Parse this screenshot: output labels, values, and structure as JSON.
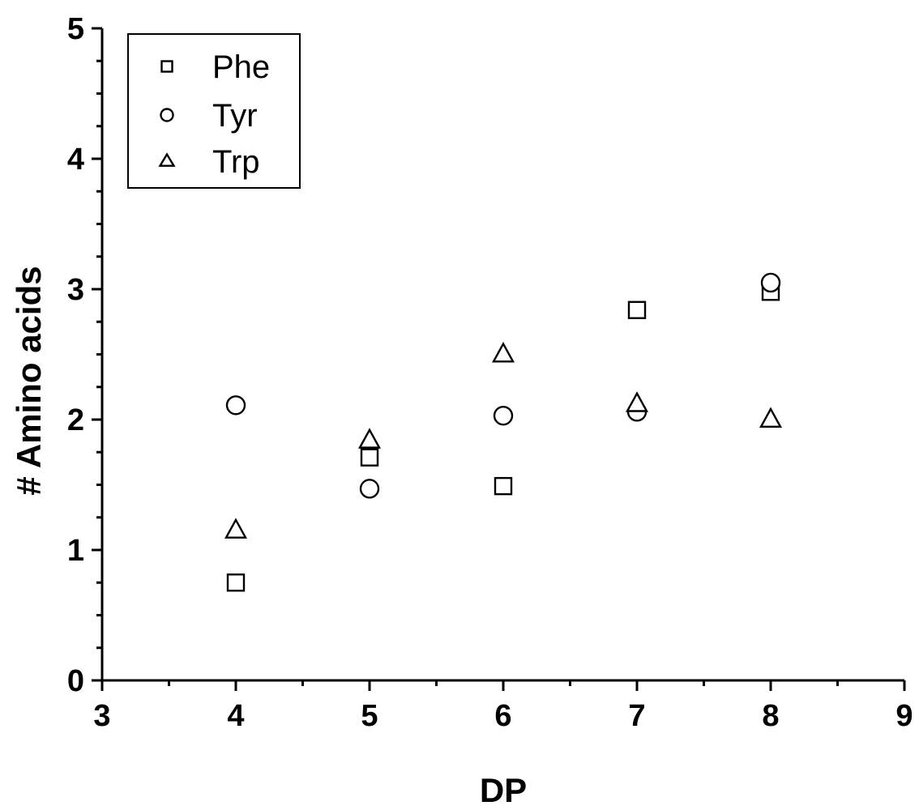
{
  "chart_data": {
    "type": "scatter",
    "title": "",
    "xlabel": "DP",
    "ylabel": "# Amino acids",
    "xlim": [
      3,
      9
    ],
    "ylim": [
      0,
      5
    ],
    "x_ticks": [
      "3",
      "4",
      "5",
      "6",
      "7",
      "8",
      "9"
    ],
    "y_ticks": [
      "0",
      "1",
      "2",
      "3",
      "4",
      "5"
    ],
    "grid": false,
    "legend_position": "top-left",
    "series": [
      {
        "name": "Phe",
        "marker": "square",
        "points": [
          {
            "x": 4,
            "y": 0.75
          },
          {
            "x": 5,
            "y": 1.71
          },
          {
            "x": 6,
            "y": 1.49
          },
          {
            "x": 7,
            "y": 2.84
          },
          {
            "x": 8,
            "y": 2.98
          }
        ]
      },
      {
        "name": "Tyr",
        "marker": "circle",
        "points": [
          {
            "x": 4,
            "y": 2.11
          },
          {
            "x": 5,
            "y": 1.47
          },
          {
            "x": 6,
            "y": 2.03
          },
          {
            "x": 7,
            "y": 2.06
          },
          {
            "x": 8,
            "y": 3.05
          }
        ]
      },
      {
        "name": "Trp",
        "marker": "triangle",
        "points": [
          {
            "x": 4,
            "y": 1.15
          },
          {
            "x": 5,
            "y": 1.84
          },
          {
            "x": 6,
            "y": 2.5
          },
          {
            "x": 7,
            "y": 2.12
          },
          {
            "x": 8,
            "y": 2.0
          }
        ]
      }
    ]
  }
}
